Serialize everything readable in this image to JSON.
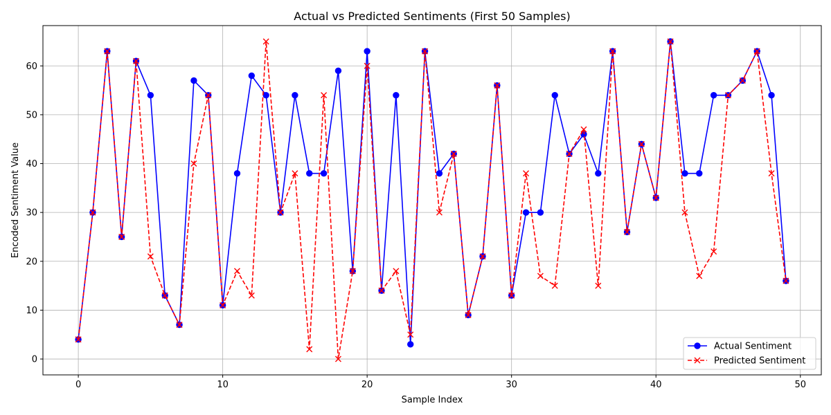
{
  "chart_data": {
    "type": "line",
    "title": "Actual vs Predicted Sentiments (First 50 Samples)",
    "xlabel": "Sample Index",
    "ylabel": "Encoded Sentiment Value",
    "xlim": [
      -2.45,
      51.45
    ],
    "ylim": [
      -3.25,
      68.25
    ],
    "xticks": [
      0,
      10,
      20,
      30,
      40,
      50
    ],
    "yticks": [
      0,
      10,
      20,
      30,
      40,
      50,
      60
    ],
    "grid": true,
    "legend_position": "lower-right",
    "x": [
      0,
      1,
      2,
      3,
      4,
      5,
      6,
      7,
      8,
      9,
      10,
      11,
      12,
      13,
      14,
      15,
      16,
      17,
      18,
      19,
      20,
      21,
      22,
      23,
      24,
      25,
      26,
      27,
      28,
      29,
      30,
      31,
      32,
      33,
      34,
      35,
      36,
      37,
      38,
      39,
      40,
      41,
      42,
      43,
      44,
      45,
      46,
      47,
      48,
      49
    ],
    "series": [
      {
        "name": "Actual Sentiment",
        "color": "#0000ff",
        "line_style": "solid",
        "marker": "circle",
        "values": [
          4,
          30,
          63,
          25,
          61,
          54,
          13,
          7,
          57,
          54,
          11,
          38,
          58,
          54,
          30,
          54,
          38,
          38,
          59,
          18,
          63,
          14,
          54,
          3,
          63,
          38,
          42,
          9,
          21,
          56,
          13,
          30,
          30,
          54,
          42,
          46,
          38,
          63,
          26,
          44,
          33,
          65,
          38,
          38,
          54,
          54,
          57,
          63,
          54,
          16
        ]
      },
      {
        "name": "Predicted Sentiment",
        "color": "#ff0000",
        "line_style": "dashed",
        "marker": "x",
        "values": [
          4,
          30,
          63,
          25,
          61,
          21,
          13,
          7,
          40,
          54,
          11,
          18,
          13,
          65,
          30,
          38,
          2,
          54,
          0,
          18,
          60,
          14,
          18,
          5,
          63,
          30,
          42,
          9,
          21,
          56,
          13,
          38,
          17,
          15,
          42,
          47,
          15,
          63,
          26,
          44,
          33,
          65,
          30,
          17,
          22,
          54,
          57,
          63,
          38,
          16
        ]
      }
    ]
  }
}
